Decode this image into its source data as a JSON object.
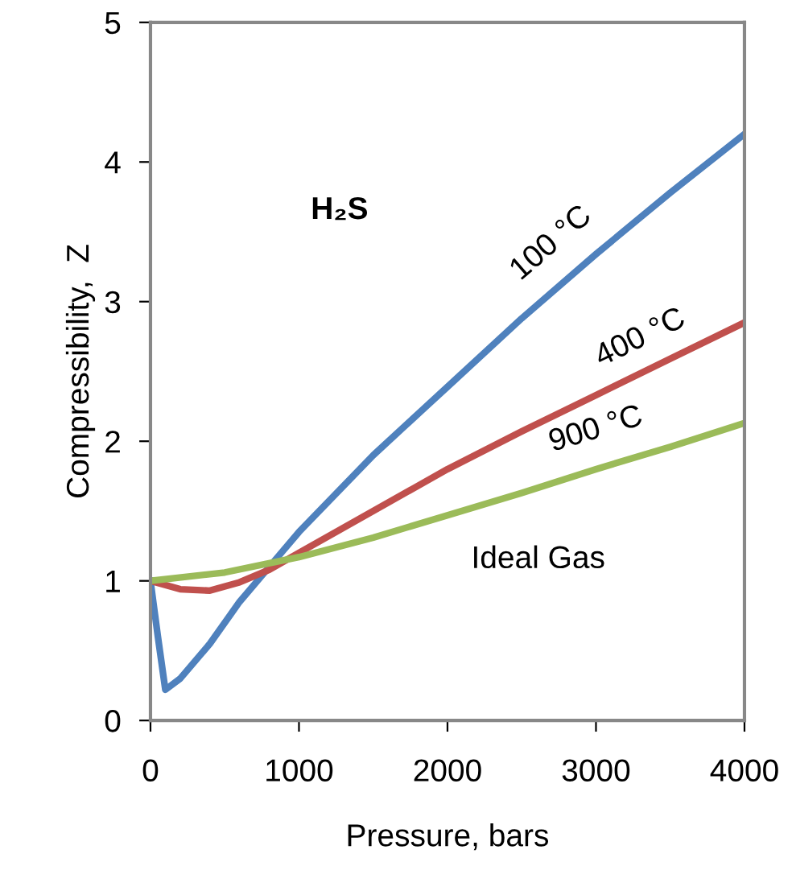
{
  "chart_data": {
    "type": "line",
    "xlabel": "Pressure, bars",
    "ylabel": "Compressibility,  Z",
    "xlim": [
      0,
      4000
    ],
    "ylim": [
      0,
      5
    ],
    "xticks": [
      0,
      1000,
      2000,
      3000,
      4000
    ],
    "yticks": [
      0,
      1,
      2,
      3,
      4,
      5
    ],
    "grid": false,
    "legend": false,
    "marker": "none",
    "line_style": "solid",
    "series": [
      {
        "name": "100 °C",
        "color": "#4f81bd",
        "x": [
          0,
          50,
          100,
          200,
          400,
          600,
          800,
          1000,
          1500,
          2000,
          2500,
          3000,
          3500,
          4000
        ],
        "values": [
          1.0,
          0.6,
          0.22,
          0.3,
          0.55,
          0.85,
          1.1,
          1.35,
          1.9,
          2.39,
          2.88,
          3.34,
          3.78,
          4.2
        ]
      },
      {
        "name": "400 °C",
        "color": "#c0504d",
        "x": [
          0,
          200,
          400,
          600,
          800,
          1000,
          1500,
          2000,
          2500,
          3000,
          3500,
          4000
        ],
        "values": [
          1.0,
          0.94,
          0.93,
          0.99,
          1.08,
          1.2,
          1.5,
          1.8,
          2.07,
          2.33,
          2.59,
          2.85
        ]
      },
      {
        "name": "900 °C",
        "color": "#9bbb59",
        "x": [
          0,
          500,
          1000,
          1500,
          2000,
          2500,
          3000,
          3500,
          4000
        ],
        "values": [
          1.0,
          1.06,
          1.17,
          1.31,
          1.47,
          1.63,
          1.8,
          1.96,
          2.13
        ]
      }
    ],
    "annotations": [
      "H₂S",
      "Ideal Gas"
    ]
  }
}
